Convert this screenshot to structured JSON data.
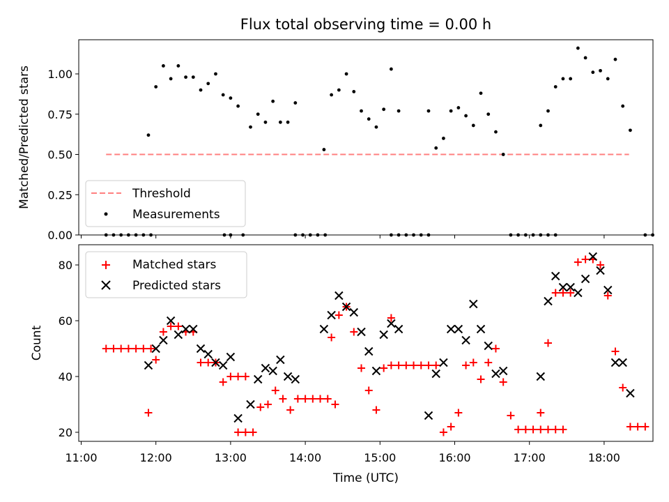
{
  "title": "Flux total observing time = 0.00 h",
  "chart_data": [
    {
      "type": "scatter",
      "ylabel": "Matched/Predicted stars",
      "xlabel": "",
      "ylim": [
        0,
        1.23
      ],
      "y_ticks": [
        "0.00",
        "0.25",
        "0.50",
        "0.75",
        "1.00"
      ],
      "y_tick_values": [
        0,
        0.25,
        0.5,
        0.75,
        1.0
      ],
      "legend_position": "lower-left",
      "threshold": {
        "name": "Threshold",
        "y": 0.5,
        "x_start": "11:20",
        "x_end": "18:20",
        "color": "#ff7f7f",
        "style": "dashed"
      },
      "series": [
        {
          "name": "Measurements",
          "color": "#000000",
          "marker": "dot",
          "points": [
            [
              "11:20",
              0
            ],
            [
              "11:26",
              0
            ],
            [
              "11:32",
              0
            ],
            [
              "11:38",
              0
            ],
            [
              "11:44",
              0
            ],
            [
              "11:50",
              0
            ],
            [
              "11:56",
              0
            ],
            [
              "11:54",
              0.62
            ],
            [
              "12:00",
              0.92
            ],
            [
              "12:06",
              1.05
            ],
            [
              "12:12",
              0.97
            ],
            [
              "12:18",
              1.05
            ],
            [
              "12:24",
              0.98
            ],
            [
              "12:30",
              0.98
            ],
            [
              "12:36",
              0.9
            ],
            [
              "12:42",
              0.94
            ],
            [
              "12:48",
              1.0
            ],
            [
              "12:54",
              0.87
            ],
            [
              "13:00",
              0.85
            ],
            [
              "12:55",
              0
            ],
            [
              "13:00",
              0
            ],
            [
              "13:06",
              0.8
            ],
            [
              "13:10",
              0
            ],
            [
              "13:16",
              0.67
            ],
            [
              "13:22",
              0.75
            ],
            [
              "13:28",
              0.7
            ],
            [
              "13:34",
              0.83
            ],
            [
              "13:40",
              0.7
            ],
            [
              "13:46",
              0.7
            ],
            [
              "13:52",
              0.82
            ],
            [
              "13:52",
              0
            ],
            [
              "13:58",
              0
            ],
            [
              "14:04",
              0
            ],
            [
              "14:10",
              0
            ],
            [
              "14:16",
              0
            ],
            [
              "14:15",
              0.53
            ],
            [
              "14:21",
              0.87
            ],
            [
              "14:27",
              0.9
            ],
            [
              "14:33",
              1.0
            ],
            [
              "14:39",
              0.89
            ],
            [
              "14:45",
              0.77
            ],
            [
              "14:51",
              0.72
            ],
            [
              "14:57",
              0.67
            ],
            [
              "15:03",
              0.78
            ],
            [
              "15:09",
              1.03
            ],
            [
              "15:15",
              0.77
            ],
            [
              "15:09",
              0
            ],
            [
              "15:15",
              0
            ],
            [
              "15:21",
              0
            ],
            [
              "15:27",
              0
            ],
            [
              "15:33",
              0
            ],
            [
              "15:39",
              0
            ],
            [
              "15:39",
              0.77
            ],
            [
              "15:45",
              0.54
            ],
            [
              "15:51",
              0.6
            ],
            [
              "15:57",
              0.77
            ],
            [
              "16:03",
              0.79
            ],
            [
              "16:09",
              0.74
            ],
            [
              "16:15",
              0.68
            ],
            [
              "16:21",
              0.88
            ],
            [
              "16:27",
              0.75
            ],
            [
              "16:33",
              0.64
            ],
            [
              "16:39",
              0.5
            ],
            [
              "16:45",
              0
            ],
            [
              "16:51",
              0
            ],
            [
              "16:57",
              0
            ],
            [
              "17:03",
              0
            ],
            [
              "17:09",
              0
            ],
            [
              "17:15",
              0
            ],
            [
              "17:21",
              0
            ],
            [
              "17:09",
              0.68
            ],
            [
              "17:15",
              0.77
            ],
            [
              "17:21",
              0.92
            ],
            [
              "17:27",
              0.97
            ],
            [
              "17:33",
              0.97
            ],
            [
              "17:39",
              1.16
            ],
            [
              "17:45",
              1.1
            ],
            [
              "17:51",
              1.01
            ],
            [
              "17:57",
              1.02
            ],
            [
              "18:03",
              0.97
            ],
            [
              "18:09",
              1.09
            ],
            [
              "18:15",
              0.8
            ],
            [
              "18:21",
              0.65
            ],
            [
              "18:33",
              0
            ],
            [
              "18:39",
              0
            ]
          ]
        }
      ]
    },
    {
      "type": "scatter",
      "ylabel": "Count",
      "xlabel": "Time (UTC)",
      "ylim": [
        16.6,
        87
      ],
      "y_ticks": [
        "20",
        "40",
        "60",
        "80"
      ],
      "y_tick_values": [
        20,
        40,
        60,
        80
      ],
      "x_ticks": [
        "11:00",
        "12:00",
        "13:00",
        "14:00",
        "15:00",
        "16:00",
        "17:00",
        "18:00"
      ],
      "x_range": [
        "11:00",
        "18:43"
      ],
      "legend_position": "upper-left",
      "series": [
        {
          "name": "Matched stars",
          "color": "#ff0000",
          "marker": "plus",
          "points": [
            [
              "11:20",
              50
            ],
            [
              "11:26",
              50
            ],
            [
              "11:32",
              50
            ],
            [
              "11:38",
              50
            ],
            [
              "11:44",
              50
            ],
            [
              "11:50",
              50
            ],
            [
              "11:56",
              50
            ],
            [
              "11:54",
              27
            ],
            [
              "12:00",
              46
            ],
            [
              "12:06",
              56
            ],
            [
              "12:12",
              58
            ],
            [
              "12:18",
              58
            ],
            [
              "12:24",
              56
            ],
            [
              "12:30",
              56
            ],
            [
              "12:36",
              45
            ],
            [
              "12:42",
              45
            ],
            [
              "12:48",
              45
            ],
            [
              "12:54",
              38
            ],
            [
              "13:00",
              40
            ],
            [
              "13:06",
              40
            ],
            [
              "13:12",
              40
            ],
            [
              "13:06",
              20
            ],
            [
              "13:12",
              20
            ],
            [
              "13:18",
              20
            ],
            [
              "13:24",
              29
            ],
            [
              "13:30",
              30
            ],
            [
              "13:36",
              35
            ],
            [
              "13:42",
              32
            ],
            [
              "13:48",
              28
            ],
            [
              "13:54",
              32
            ],
            [
              "14:00",
              32
            ],
            [
              "14:06",
              32
            ],
            [
              "14:12",
              32
            ],
            [
              "14:18",
              32
            ],
            [
              "14:24",
              30
            ],
            [
              "14:21",
              54
            ],
            [
              "14:27",
              62
            ],
            [
              "14:33",
              65
            ],
            [
              "14:39",
              56
            ],
            [
              "14:45",
              43
            ],
            [
              "14:51",
              35
            ],
            [
              "14:57",
              28
            ],
            [
              "15:03",
              43
            ],
            [
              "15:09",
              61
            ],
            [
              "15:09",
              44
            ],
            [
              "15:15",
              44
            ],
            [
              "15:21",
              44
            ],
            [
              "15:27",
              44
            ],
            [
              "15:33",
              44
            ],
            [
              "15:39",
              44
            ],
            [
              "15:45",
              44
            ],
            [
              "15:51",
              20
            ],
            [
              "15:57",
              22
            ],
            [
              "16:03",
              27
            ],
            [
              "16:09",
              44
            ],
            [
              "16:15",
              45
            ],
            [
              "16:21",
              39
            ],
            [
              "16:27",
              45
            ],
            [
              "16:33",
              50
            ],
            [
              "16:39",
              38
            ],
            [
              "16:45",
              26
            ],
            [
              "16:51",
              21
            ],
            [
              "16:57",
              21
            ],
            [
              "17:03",
              21
            ],
            [
              "17:09",
              21
            ],
            [
              "17:15",
              21
            ],
            [
              "17:21",
              21
            ],
            [
              "17:27",
              21
            ],
            [
              "17:09",
              27
            ],
            [
              "17:15",
              52
            ],
            [
              "17:21",
              70
            ],
            [
              "17:27",
              70
            ],
            [
              "17:33",
              70
            ],
            [
              "17:39",
              81
            ],
            [
              "17:45",
              82
            ],
            [
              "17:51",
              82
            ],
            [
              "17:57",
              80
            ],
            [
              "18:03",
              69
            ],
            [
              "18:09",
              49
            ],
            [
              "18:15",
              36
            ],
            [
              "18:21",
              22
            ],
            [
              "18:27",
              22
            ],
            [
              "18:33",
              22
            ]
          ]
        },
        {
          "name": "Predicted stars",
          "color": "#000000",
          "marker": "x",
          "points": [
            [
              "11:54",
              44
            ],
            [
              "12:00",
              50
            ],
            [
              "12:06",
              53
            ],
            [
              "12:12",
              60
            ],
            [
              "12:18",
              55
            ],
            [
              "12:24",
              57
            ],
            [
              "12:30",
              57
            ],
            [
              "12:36",
              50
            ],
            [
              "12:42",
              48
            ],
            [
              "12:48",
              45
            ],
            [
              "12:54",
              44
            ],
            [
              "13:00",
              47
            ],
            [
              "13:06",
              25
            ],
            [
              "13:16",
              30
            ],
            [
              "13:22",
              39
            ],
            [
              "13:28",
              43
            ],
            [
              "13:34",
              42
            ],
            [
              "13:40",
              46
            ],
            [
              "13:46",
              40
            ],
            [
              "13:52",
              39
            ],
            [
              "14:15",
              57
            ],
            [
              "14:21",
              62
            ],
            [
              "14:27",
              69
            ],
            [
              "14:33",
              65
            ],
            [
              "14:39",
              63
            ],
            [
              "14:45",
              56
            ],
            [
              "14:51",
              49
            ],
            [
              "14:57",
              42
            ],
            [
              "15:03",
              55
            ],
            [
              "15:09",
              59
            ],
            [
              "15:15",
              57
            ],
            [
              "15:39",
              26
            ],
            [
              "15:45",
              41
            ],
            [
              "15:51",
              45
            ],
            [
              "15:57",
              57
            ],
            [
              "16:03",
              57
            ],
            [
              "16:09",
              53
            ],
            [
              "16:15",
              66
            ],
            [
              "16:21",
              57
            ],
            [
              "16:27",
              51
            ],
            [
              "16:33",
              41
            ],
            [
              "16:39",
              42
            ],
            [
              "17:09",
              40
            ],
            [
              "17:15",
              67
            ],
            [
              "17:21",
              76
            ],
            [
              "17:27",
              72
            ],
            [
              "17:33",
              72
            ],
            [
              "17:39",
              70
            ],
            [
              "17:45",
              75
            ],
            [
              "17:51",
              83
            ],
            [
              "17:57",
              78
            ],
            [
              "18:03",
              71
            ],
            [
              "18:09",
              45
            ],
            [
              "18:15",
              45
            ],
            [
              "18:21",
              34
            ]
          ]
        }
      ]
    }
  ]
}
